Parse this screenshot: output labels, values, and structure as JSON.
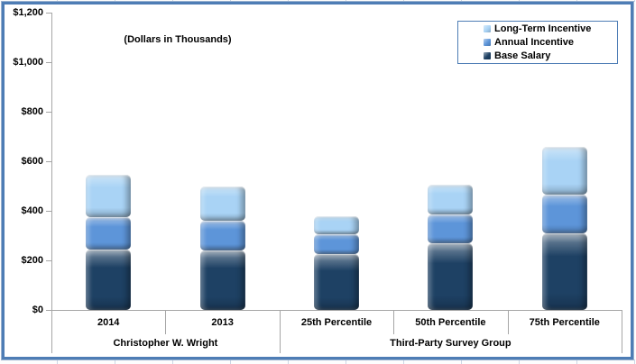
{
  "annotation": {
    "units_note": "(Dollars in Thousands)"
  },
  "chart_data": {
    "type": "bar",
    "stacked": true,
    "title": "",
    "note": "(Dollars in Thousands)",
    "xlabel": "",
    "ylabel": "Dollars in Thousands",
    "ylim": [
      0,
      1200
    ],
    "grid": false,
    "y_ticks": [
      {
        "label": "$1,200",
        "value": 1200
      },
      {
        "label": "$1,000",
        "value": 1000
      },
      {
        "label": "$800",
        "value": 800
      },
      {
        "label": "$600",
        "value": 600
      },
      {
        "label": "$400",
        "value": 400
      },
      {
        "label": "$200",
        "value": 200
      },
      {
        "label": "$0",
        "value": 0
      }
    ],
    "categories": [
      "2014",
      "2013",
      "25th Percentile",
      "50th Percentile",
      "75th Percentile"
    ],
    "category_groups": [
      {
        "label": "Christopher W. Wright",
        "span": 2
      },
      {
        "label": "Third-Party Survey Group",
        "span": 3
      }
    ],
    "series": [
      {
        "name": "Base Salary",
        "color": "#1E4164",
        "values": [
          245,
          240,
          225,
          270,
          310
        ]
      },
      {
        "name": "Annual Incentive",
        "color": "#5D95D9",
        "values": [
          130,
          120,
          80,
          115,
          155
        ]
      },
      {
        "name": "Long-Term Incentive",
        "color": "#A9D3F5",
        "values": [
          170,
          140,
          75,
          120,
          195
        ]
      }
    ],
    "totals": [
      545,
      500,
      380,
      505,
      660
    ],
    "legend": {
      "position": "top-right",
      "entries": [
        "Long-Term Incentive",
        "Annual Incentive",
        "Base Salary"
      ]
    },
    "colors": {
      "frame_border": "#4e7db5",
      "axis": "#a6a6a6",
      "text": "#000000"
    }
  }
}
